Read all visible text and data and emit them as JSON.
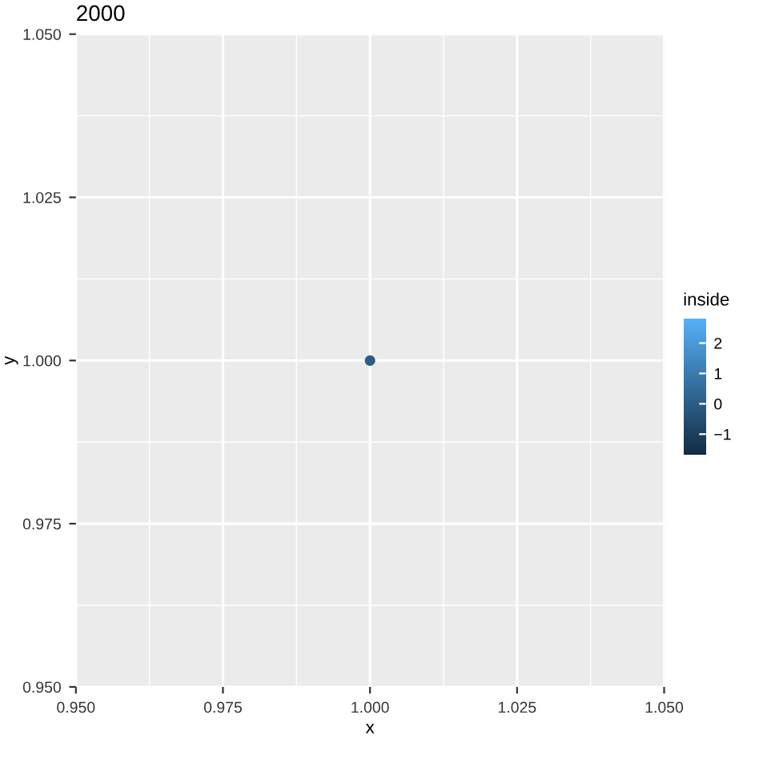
{
  "chart_data": {
    "type": "scatter",
    "title": "2000",
    "xlabel": "x",
    "ylabel": "y",
    "clabel": "inside",
    "x": [
      1.0
    ],
    "values": [
      1.0
    ],
    "cvalues": [
      0
    ],
    "xlim": [
      0.95,
      1.05
    ],
    "xticks": [
      {
        "value": 0.95,
        "label": "0.950"
      },
      {
        "value": 0.975,
        "label": "0.975"
      },
      {
        "value": 1.0,
        "label": "1.000"
      },
      {
        "value": 1.025,
        "label": "1.025"
      },
      {
        "value": 1.05,
        "label": "1.050"
      }
    ],
    "ylim": [
      0.95,
      1.05
    ],
    "yticks": [
      {
        "value": 0.95,
        "label": "0.950"
      },
      {
        "value": 0.975,
        "label": "0.975"
      },
      {
        "value": 1.0,
        "label": "1.000"
      },
      {
        "value": 1.025,
        "label": "1.025"
      },
      {
        "value": 1.05,
        "label": "1.050"
      }
    ],
    "clim": [
      -1.7,
      2.8
    ],
    "cticks": [
      -1,
      0,
      1,
      2
    ],
    "grid": true,
    "marker": "circle"
  }
}
